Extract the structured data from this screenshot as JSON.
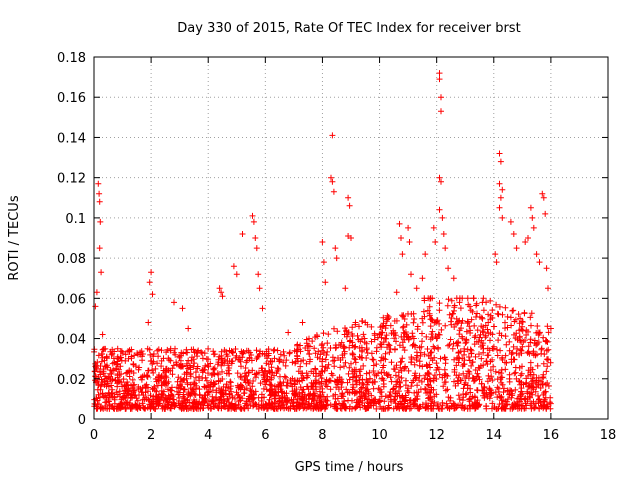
{
  "chart_data": {
    "type": "scatter",
    "title": "Day 330 of 2015, Rate Of TEC Index for receiver brst",
    "xlabel": "GPS time / hours",
    "ylabel": "ROTI / TECUs",
    "xlim": [
      0,
      18
    ],
    "ylim": [
      0,
      0.18
    ],
    "xticks": [
      "0",
      "2",
      "4",
      "6",
      "8",
      "10",
      "12",
      "14",
      "16",
      "18"
    ],
    "yticks": [
      "0",
      "0.02",
      "0.04",
      "0.06",
      "0.08",
      "0.1",
      "0.12",
      "0.14",
      "0.16",
      "0.18"
    ],
    "grid": true,
    "marker": "+",
    "marker_color": "#ff0000",
    "data_span_hours": [
      0,
      16
    ],
    "baseline_band": [
      0.005,
      0.035
    ],
    "series": [
      {
        "name": "ROTI",
        "notable_points": [
          {
            "x": 0.15,
            "y": 0.117
          },
          {
            "x": 0.18,
            "y": 0.112
          },
          {
            "x": 0.2,
            "y": 0.108
          },
          {
            "x": 0.22,
            "y": 0.098
          },
          {
            "x": 0.2,
            "y": 0.085
          },
          {
            "x": 0.25,
            "y": 0.073
          },
          {
            "x": 0.1,
            "y": 0.063
          },
          {
            "x": 0.05,
            "y": 0.056
          },
          {
            "x": 0.3,
            "y": 0.042
          },
          {
            "x": 2.0,
            "y": 0.073
          },
          {
            "x": 1.95,
            "y": 0.068
          },
          {
            "x": 2.05,
            "y": 0.062
          },
          {
            "x": 1.9,
            "y": 0.048
          },
          {
            "x": 2.8,
            "y": 0.058
          },
          {
            "x": 3.1,
            "y": 0.055
          },
          {
            "x": 3.3,
            "y": 0.045
          },
          {
            "x": 4.4,
            "y": 0.065
          },
          {
            "x": 4.45,
            "y": 0.063
          },
          {
            "x": 4.5,
            "y": 0.061
          },
          {
            "x": 4.9,
            "y": 0.076
          },
          {
            "x": 5.0,
            "y": 0.072
          },
          {
            "x": 5.2,
            "y": 0.092
          },
          {
            "x": 5.55,
            "y": 0.101
          },
          {
            "x": 5.6,
            "y": 0.098
          },
          {
            "x": 5.65,
            "y": 0.09
          },
          {
            "x": 5.7,
            "y": 0.085
          },
          {
            "x": 5.75,
            "y": 0.072
          },
          {
            "x": 5.8,
            "y": 0.065
          },
          {
            "x": 5.9,
            "y": 0.055
          },
          {
            "x": 6.8,
            "y": 0.043
          },
          {
            "x": 7.3,
            "y": 0.048
          },
          {
            "x": 8.0,
            "y": 0.088
          },
          {
            "x": 8.05,
            "y": 0.078
          },
          {
            "x": 8.1,
            "y": 0.068
          },
          {
            "x": 8.35,
            "y": 0.141
          },
          {
            "x": 8.3,
            "y": 0.12
          },
          {
            "x": 8.35,
            "y": 0.118
          },
          {
            "x": 8.4,
            "y": 0.113
          },
          {
            "x": 8.45,
            "y": 0.085
          },
          {
            "x": 8.5,
            "y": 0.08
          },
          {
            "x": 8.9,
            "y": 0.11
          },
          {
            "x": 8.95,
            "y": 0.106
          },
          {
            "x": 8.9,
            "y": 0.091
          },
          {
            "x": 9.0,
            "y": 0.09
          },
          {
            "x": 8.8,
            "y": 0.065
          },
          {
            "x": 9.5,
            "y": 0.048
          },
          {
            "x": 10.0,
            "y": 0.042
          },
          {
            "x": 10.3,
            "y": 0.05
          },
          {
            "x": 10.6,
            "y": 0.063
          },
          {
            "x": 10.7,
            "y": 0.097
          },
          {
            "x": 10.75,
            "y": 0.09
          },
          {
            "x": 10.8,
            "y": 0.082
          },
          {
            "x": 11.0,
            "y": 0.095
          },
          {
            "x": 11.05,
            "y": 0.088
          },
          {
            "x": 11.1,
            "y": 0.072
          },
          {
            "x": 11.3,
            "y": 0.065
          },
          {
            "x": 11.5,
            "y": 0.07
          },
          {
            "x": 11.6,
            "y": 0.082
          },
          {
            "x": 11.9,
            "y": 0.095
          },
          {
            "x": 11.95,
            "y": 0.088
          },
          {
            "x": 12.1,
            "y": 0.172
          },
          {
            "x": 12.1,
            "y": 0.169
          },
          {
            "x": 12.15,
            "y": 0.16
          },
          {
            "x": 12.15,
            "y": 0.153
          },
          {
            "x": 12.1,
            "y": 0.12
          },
          {
            "x": 12.15,
            "y": 0.118
          },
          {
            "x": 12.1,
            "y": 0.104
          },
          {
            "x": 12.2,
            "y": 0.1
          },
          {
            "x": 12.25,
            "y": 0.092
          },
          {
            "x": 12.3,
            "y": 0.085
          },
          {
            "x": 12.4,
            "y": 0.075
          },
          {
            "x": 12.6,
            "y": 0.07
          },
          {
            "x": 12.8,
            "y": 0.058
          },
          {
            "x": 13.3,
            "y": 0.06
          },
          {
            "x": 13.6,
            "y": 0.058
          },
          {
            "x": 13.8,
            "y": 0.052
          },
          {
            "x": 14.2,
            "y": 0.132
          },
          {
            "x": 14.25,
            "y": 0.128
          },
          {
            "x": 14.2,
            "y": 0.117
          },
          {
            "x": 14.3,
            "y": 0.114
          },
          {
            "x": 14.25,
            "y": 0.11
          },
          {
            "x": 14.2,
            "y": 0.105
          },
          {
            "x": 14.3,
            "y": 0.1
          },
          {
            "x": 14.05,
            "y": 0.082
          },
          {
            "x": 14.1,
            "y": 0.078
          },
          {
            "x": 14.6,
            "y": 0.098
          },
          {
            "x": 14.7,
            "y": 0.092
          },
          {
            "x": 14.8,
            "y": 0.085
          },
          {
            "x": 15.1,
            "y": 0.088
          },
          {
            "x": 15.2,
            "y": 0.09
          },
          {
            "x": 15.3,
            "y": 0.105
          },
          {
            "x": 15.35,
            "y": 0.1
          },
          {
            "x": 15.4,
            "y": 0.095
          },
          {
            "x": 15.5,
            "y": 0.082
          },
          {
            "x": 15.6,
            "y": 0.078
          },
          {
            "x": 15.7,
            "y": 0.112
          },
          {
            "x": 15.75,
            "y": 0.11
          },
          {
            "x": 15.8,
            "y": 0.102
          },
          {
            "x": 15.85,
            "y": 0.075
          },
          {
            "x": 15.9,
            "y": 0.065
          },
          {
            "x": 16.0,
            "y": 0.045
          }
        ]
      }
    ]
  }
}
